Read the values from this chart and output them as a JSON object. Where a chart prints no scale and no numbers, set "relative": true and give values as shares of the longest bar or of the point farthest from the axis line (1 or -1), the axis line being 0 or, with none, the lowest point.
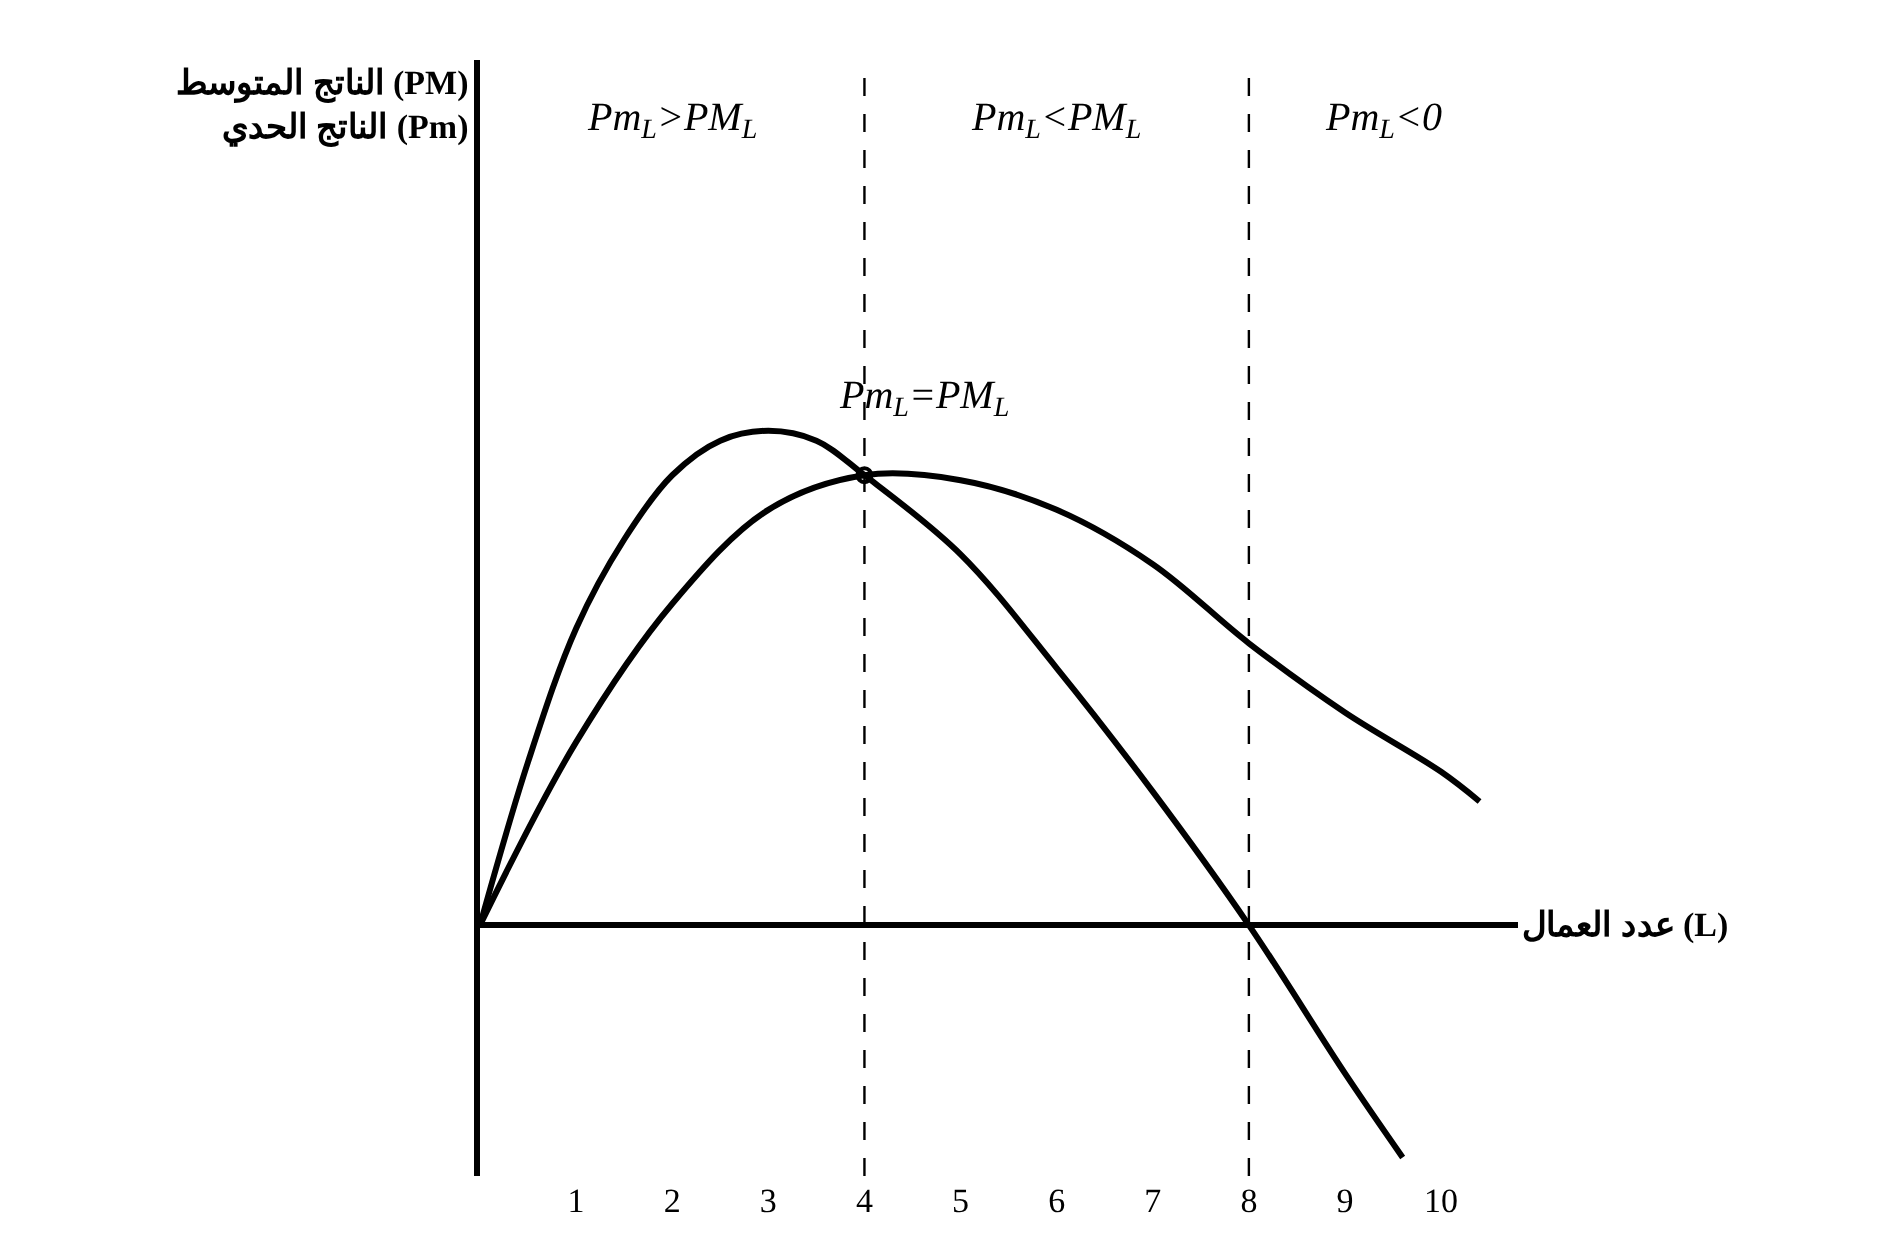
{
  "chart_data": {
    "type": "line",
    "relative": true,
    "xlabel": "عدد العمال (L)",
    "xlim": [
      0,
      10.8
    ],
    "xticks": [
      1,
      2,
      3,
      4,
      5,
      6,
      7,
      8,
      9,
      10
    ],
    "line_style": "solid",
    "series": [
      {
        "color": "#000000",
        "x": [
          0,
          0.5,
          1,
          1.5,
          2,
          2.5,
          3,
          3.5,
          4,
          5,
          6,
          7,
          8,
          9,
          9.6
        ],
        "values": [
          0,
          0.33,
          0.6,
          0.78,
          0.91,
          0.98,
          1,
          0.98,
          0.91,
          0.75,
          0.52,
          0.27,
          0,
          -0.3,
          -0.47
        ]
      },
      {
        "color": "#000000",
        "x": [
          0,
          1,
          2,
          3,
          4,
          5,
          6,
          7,
          8,
          9,
          10,
          10.4
        ],
        "values": [
          0,
          0.37,
          0.65,
          0.84,
          0.91,
          0.9,
          0.84,
          0.73,
          0.57,
          0.43,
          0.31,
          0.25
        ]
      }
    ],
    "ref_lines": [
      {
        "axis": "x",
        "value": 4,
        "line_style": "dashed",
        "color": "#000000"
      },
      {
        "axis": "x",
        "value": 8,
        "line_style": "dashed",
        "color": "#000000"
      }
    ],
    "annotations": [
      "الناتج المتوسط (PM)\nالناتج الحدي (Pm)",
      "Pm$_{L}$>PM$_{L}$",
      "Pm$_{L}$<PM$_{L}$",
      "Pm$_{L}$<0",
      {
        "text": "Pm$_{L}$=PM$_{L}$",
        "x": 4,
        "y": 0.91
      }
    ]
  }
}
